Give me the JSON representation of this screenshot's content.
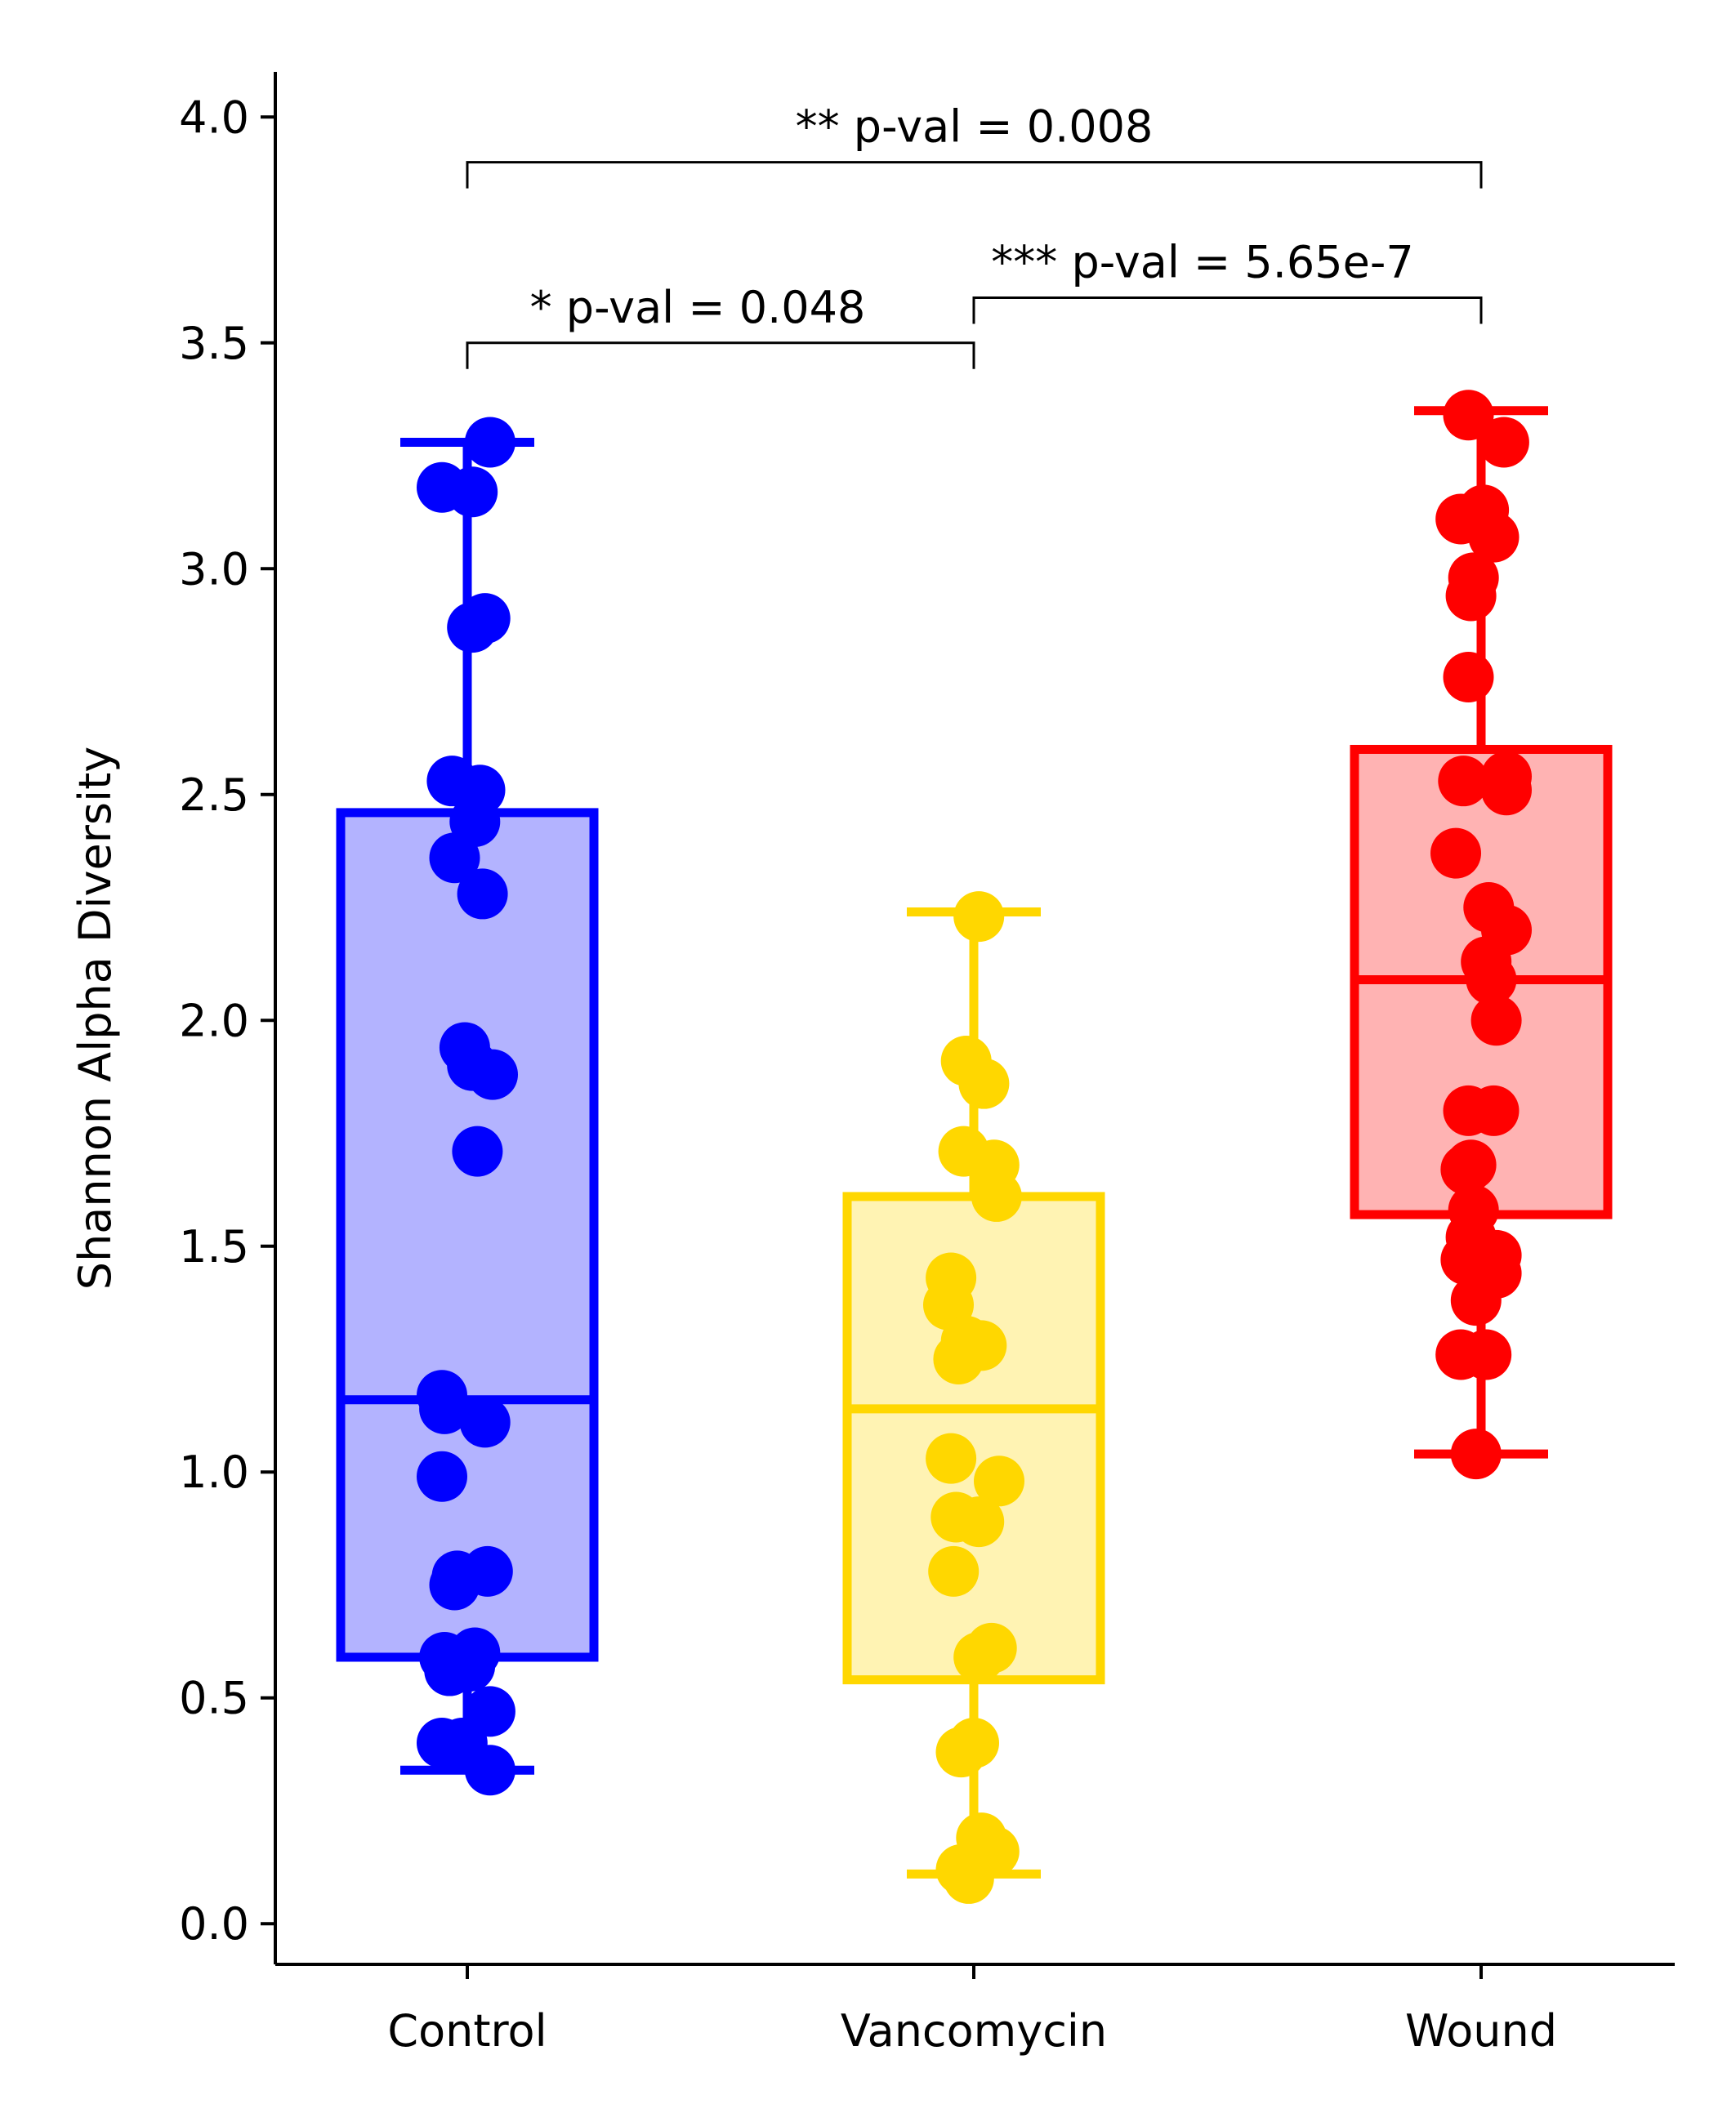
{
  "chart_data": {
    "type": "box",
    "categories": [
      "Control",
      "Vancomycin",
      "Wound"
    ],
    "ylabel": "Shannon Alpha Diversity",
    "ylim": [
      -0.09,
      4.1
    ],
    "yticks": [
      "0.0",
      "0.5",
      "1.0",
      "1.5",
      "2.0",
      "2.5",
      "3.0",
      "3.5",
      "4.0"
    ],
    "legend": "none",
    "grid": false,
    "series": [
      {
        "category": "Control",
        "color": "#0000ff",
        "fill": "#b3b3ff",
        "box": {
          "whisker_low": 0.34,
          "q1": 0.59,
          "median": 1.16,
          "q3": 2.46,
          "whisker_high": 3.28
        },
        "points": [
          [
            -0.1,
            3.18
          ],
          [
            0.02,
            3.17
          ],
          [
            0.09,
            3.28
          ],
          [
            0.02,
            2.87
          ],
          [
            0.07,
            2.89
          ],
          [
            -0.06,
            2.53
          ],
          [
            0.05,
            2.51
          ],
          [
            0.03,
            2.44
          ],
          [
            -0.05,
            2.36
          ],
          [
            0.06,
            2.28
          ],
          [
            -0.01,
            1.94
          ],
          [
            0.02,
            1.9
          ],
          [
            0.1,
            1.88
          ],
          [
            0.04,
            1.71
          ],
          [
            -0.1,
            1.17
          ],
          [
            -0.09,
            1.14
          ],
          [
            0.07,
            1.11
          ],
          [
            -0.1,
            0.99
          ],
          [
            -0.04,
            0.77
          ],
          [
            -0.05,
            0.75
          ],
          [
            0.08,
            0.78
          ],
          [
            -0.09,
            0.59
          ],
          [
            -0.07,
            0.56
          ],
          [
            0.03,
            0.6
          ],
          [
            0.01,
            0.57
          ],
          [
            0.09,
            0.47
          ],
          [
            -0.1,
            0.4
          ],
          [
            -0.02,
            0.4
          ],
          [
            0.09,
            0.34
          ]
        ]
      },
      {
        "category": "Vancomycin",
        "color": "#ffd700",
        "fill": "#fff3b3",
        "box": {
          "whisker_low": 0.11,
          "q1": 0.54,
          "median": 1.14,
          "q3": 1.61,
          "whisker_high": 2.24
        },
        "points": [
          [
            0.02,
            2.23
          ],
          [
            -0.03,
            1.91
          ],
          [
            0.04,
            1.86
          ],
          [
            -0.04,
            1.71
          ],
          [
            0.08,
            1.68
          ],
          [
            0.09,
            1.61
          ],
          [
            -0.09,
            1.43
          ],
          [
            -0.1,
            1.37
          ],
          [
            -0.03,
            1.29
          ],
          [
            0.03,
            1.28
          ],
          [
            -0.06,
            1.25
          ],
          [
            -0.09,
            1.03
          ],
          [
            0.1,
            0.98
          ],
          [
            -0.07,
            0.9
          ],
          [
            0.02,
            0.89
          ],
          [
            -0.08,
            0.78
          ],
          [
            0.07,
            0.61
          ],
          [
            0.02,
            0.59
          ],
          [
            -0.05,
            0.38
          ],
          [
            0.0,
            0.4
          ],
          [
            0.03,
            0.19
          ],
          [
            0.08,
            0.16
          ],
          [
            -0.05,
            0.12
          ],
          [
            -0.02,
            0.1
          ]
        ]
      },
      {
        "category": "Wound",
        "color": "#ff0000",
        "fill": "#ffb3b3",
        "box": {
          "whisker_low": 1.04,
          "q1": 1.57,
          "median": 2.09,
          "q3": 2.6,
          "whisker_high": 3.35
        },
        "points": [
          [
            -0.05,
            3.34
          ],
          [
            0.09,
            3.28
          ],
          [
            0.01,
            3.13
          ],
          [
            -0.08,
            3.11
          ],
          [
            0.05,
            3.07
          ],
          [
            -0.03,
            2.98
          ],
          [
            -0.04,
            2.94
          ],
          [
            -0.05,
            2.76
          ],
          [
            -0.07,
            2.53
          ],
          [
            0.1,
            2.54
          ],
          [
            0.1,
            2.51
          ],
          [
            -0.1,
            2.37
          ],
          [
            0.03,
            2.25
          ],
          [
            0.1,
            2.2
          ],
          [
            0.02,
            2.13
          ],
          [
            0.04,
            2.09
          ],
          [
            0.06,
            2.0
          ],
          [
            -0.05,
            1.8
          ],
          [
            0.05,
            1.8
          ],
          [
            -0.04,
            1.68
          ],
          [
            -0.06,
            1.67
          ],
          [
            -0.03,
            1.58
          ],
          [
            -0.04,
            1.52
          ],
          [
            0.06,
            1.48
          ],
          [
            -0.06,
            1.47
          ],
          [
            0.06,
            1.44
          ],
          [
            -0.02,
            1.38
          ],
          [
            -0.08,
            1.26
          ],
          [
            0.02,
            1.26
          ],
          [
            -0.02,
            1.04
          ]
        ]
      }
    ],
    "annotations": [
      {
        "text": "** p-val = 0.008",
        "from": 0,
        "to": 2,
        "y": 3.9
      },
      {
        "text": "* p-val = 0.048",
        "from": 0,
        "to": 1,
        "y": 3.5
      },
      {
        "text": "*** p-val = 5.65e-7",
        "from": 1,
        "to": 2,
        "y": 3.6
      }
    ]
  }
}
